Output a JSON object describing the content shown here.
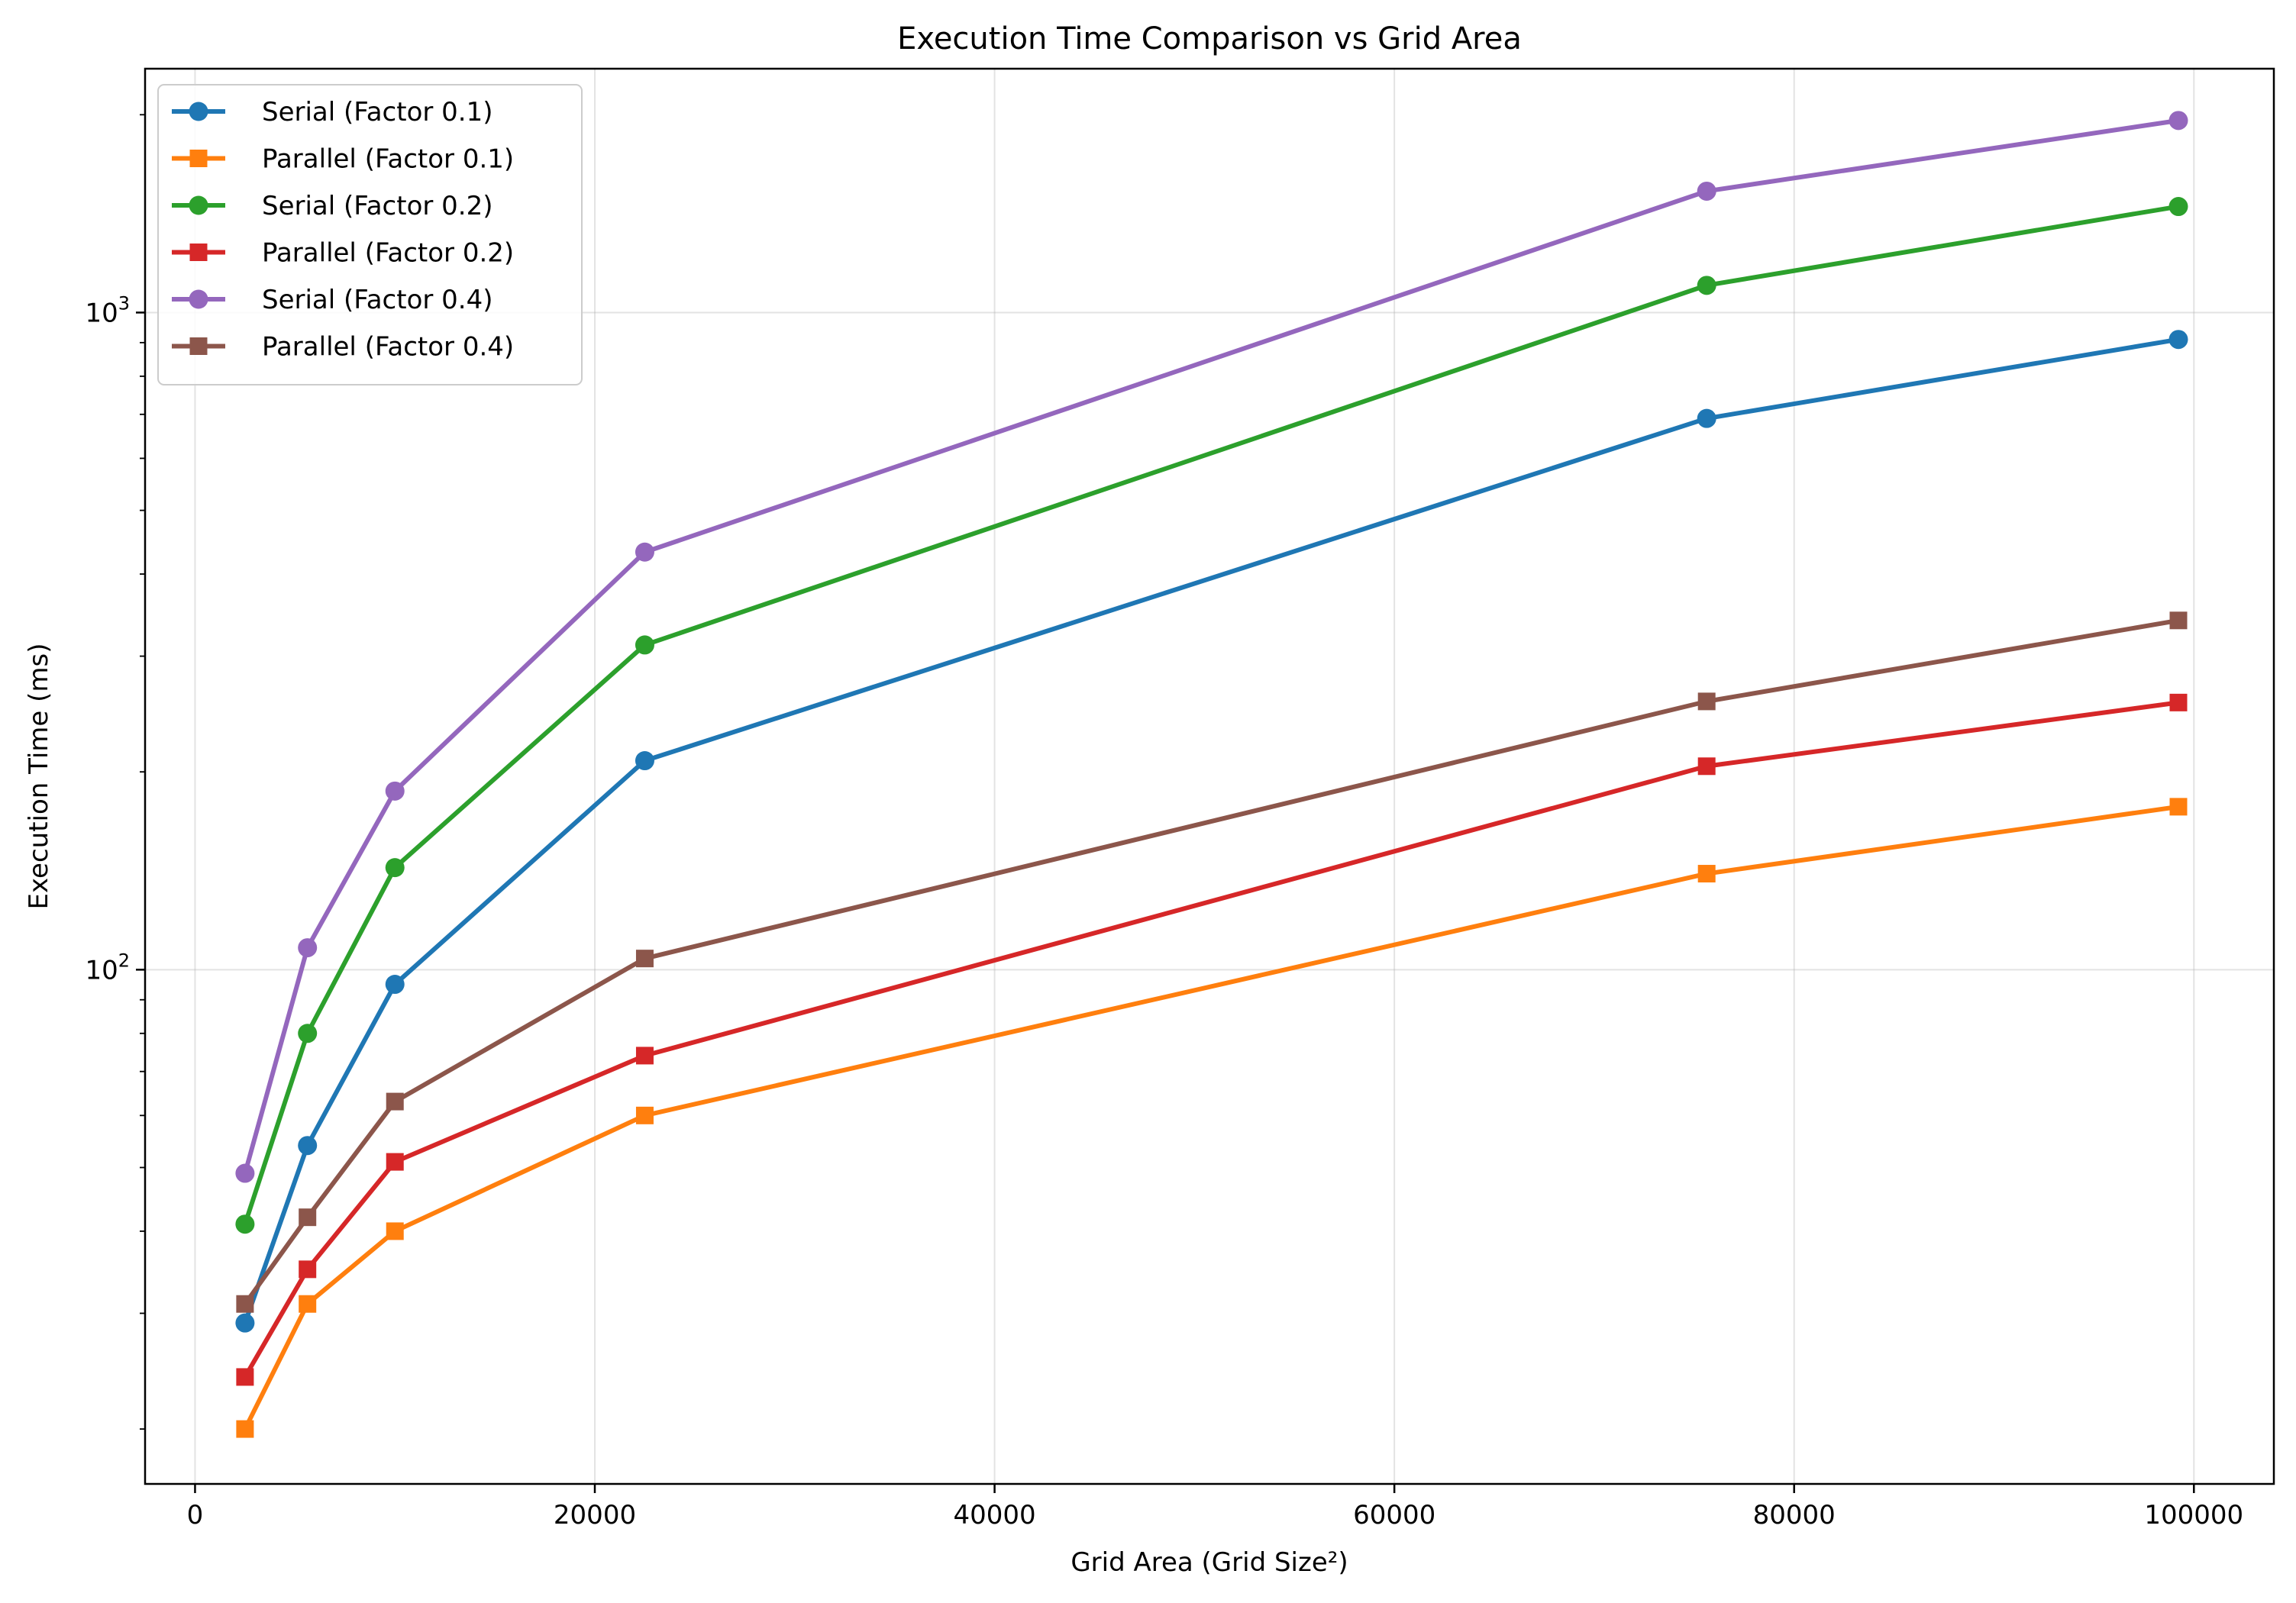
{
  "chart_data": {
    "type": "line",
    "title": "Execution Time Comparison vs Grid Area",
    "xlabel": "Grid Area (Grid Size²)",
    "ylabel": "Execution Time (ms)",
    "x_scale": "linear",
    "y_scale": "log",
    "xlim": [
      -2500,
      104000
    ],
    "ylim": [
      16.5,
      2350
    ],
    "grid": true,
    "legend_position": "upper left",
    "x_ticks": [
      {
        "value": 0,
        "label": "0"
      },
      {
        "value": 20000,
        "label": "20000"
      },
      {
        "value": 40000,
        "label": "40000"
      },
      {
        "value": 60000,
        "label": "60000"
      },
      {
        "value": 80000,
        "label": "80000"
      },
      {
        "value": 100000,
        "label": "100000"
      }
    ],
    "y_ticks": [
      {
        "value": 100,
        "base": "10",
        "exp": "2"
      },
      {
        "value": 1000,
        "base": "10",
        "exp": "3"
      }
    ],
    "x": [
      2500,
      5625,
      10000,
      22500,
      75625,
      99225
    ],
    "series": [
      {
        "name": "Serial (Factor 0.1)",
        "color": "#1f77b4",
        "marker": "circle",
        "values": [
          29,
          54,
          95,
          208,
          690,
          910
        ]
      },
      {
        "name": "Parallel (Factor 0.1)",
        "color": "#ff7f0e",
        "marker": "square",
        "values": [
          20,
          31,
          40,
          60,
          140,
          177
        ]
      },
      {
        "name": "Serial (Factor 0.2)",
        "color": "#2ca02c",
        "marker": "circle",
        "values": [
          41,
          80,
          143,
          312,
          1100,
          1450
        ]
      },
      {
        "name": "Parallel (Factor 0.2)",
        "color": "#d62728",
        "marker": "square",
        "values": [
          24,
          35,
          51,
          74,
          204,
          255
        ]
      },
      {
        "name": "Serial (Factor 0.4)",
        "color": "#9467bd",
        "marker": "circle",
        "values": [
          49,
          108,
          187,
          432,
          1530,
          1960
        ]
      },
      {
        "name": "Parallel (Factor 0.4)",
        "color": "#8c564b",
        "marker": "square",
        "values": [
          31,
          42,
          63,
          104,
          256,
          340
        ]
      }
    ]
  }
}
